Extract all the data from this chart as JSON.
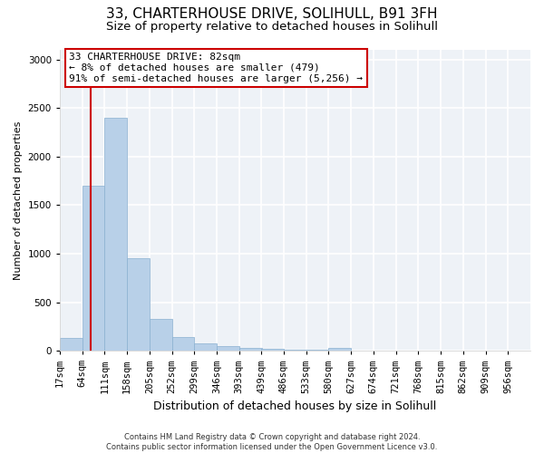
{
  "title": "33, CHARTERHOUSE DRIVE, SOLIHULL, B91 3FH",
  "subtitle": "Size of property relative to detached houses in Solihull",
  "xlabel": "Distribution of detached houses by size in Solihull",
  "ylabel": "Number of detached properties",
  "footer_line1": "Contains HM Land Registry data © Crown copyright and database right 2024.",
  "footer_line2": "Contains public sector information licensed under the Open Government Licence v3.0.",
  "annotation_line1": "33 CHARTERHOUSE DRIVE: 82sqm",
  "annotation_line2": "← 8% of detached houses are smaller (479)",
  "annotation_line3": "91% of semi-detached houses are larger (5,256) →",
  "bar_color": "#b8d0e8",
  "bar_edge_color": "#8ab0d0",
  "vline_color": "#cc0000",
  "vline_x": 82,
  "categories": [
    "17sqm",
    "64sqm",
    "111sqm",
    "158sqm",
    "205sqm",
    "252sqm",
    "299sqm",
    "346sqm",
    "393sqm",
    "439sqm",
    "486sqm",
    "533sqm",
    "580sqm",
    "627sqm",
    "674sqm",
    "721sqm",
    "768sqm",
    "815sqm",
    "862sqm",
    "909sqm",
    "956sqm"
  ],
  "bin_starts": [
    17,
    64,
    111,
    158,
    205,
    252,
    299,
    346,
    393,
    439,
    486,
    533,
    580,
    627,
    674,
    721,
    768,
    815,
    862,
    909,
    956
  ],
  "bin_width": 47,
  "bar_heights": [
    130,
    1700,
    2400,
    950,
    330,
    140,
    75,
    45,
    30,
    20,
    15,
    10,
    30,
    5,
    3,
    2,
    1,
    1,
    0,
    0,
    0
  ],
  "ylim": [
    0,
    3100
  ],
  "yticks": [
    0,
    500,
    1000,
    1500,
    2000,
    2500,
    3000
  ],
  "xlim_left": 17,
  "xlim_right": 1003,
  "background_color": "#eef2f7",
  "grid_color": "#ffffff",
  "title_fontsize": 11,
  "subtitle_fontsize": 9.5,
  "tick_fontsize": 7.5,
  "ylabel_fontsize": 8,
  "xlabel_fontsize": 9,
  "footer_fontsize": 6,
  "annotation_fontsize": 8,
  "figsize": [
    6.0,
    5.0
  ],
  "dpi": 100
}
